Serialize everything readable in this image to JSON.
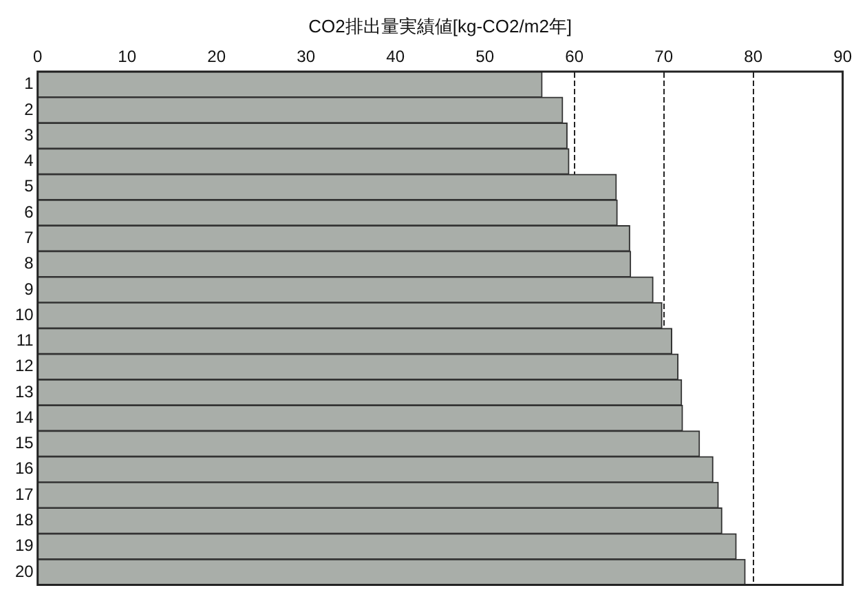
{
  "chart_data": {
    "type": "bar",
    "orientation": "horizontal",
    "xlabel": "CO2排出量実績値[kg-CO2/m2年]",
    "categories": [
      "1",
      "2",
      "3",
      "4",
      "5",
      "6",
      "7",
      "8",
      "9",
      "10",
      "11",
      "12",
      "13",
      "14",
      "15",
      "16",
      "17",
      "18",
      "19",
      "20"
    ],
    "values": [
      56.4,
      58.7,
      59.2,
      59.4,
      64.7,
      64.8,
      66.2,
      66.3,
      68.8,
      69.8,
      70.9,
      71.6,
      72.0,
      72.1,
      74.0,
      75.5,
      76.1,
      76.5,
      78.1,
      79.1
    ],
    "color": "#a9aea9",
    "xlim": [
      0,
      90
    ],
    "xticks": [
      0,
      10,
      20,
      30,
      40,
      50,
      60,
      70,
      80,
      90
    ],
    "grid": "x",
    "legend": false
  }
}
